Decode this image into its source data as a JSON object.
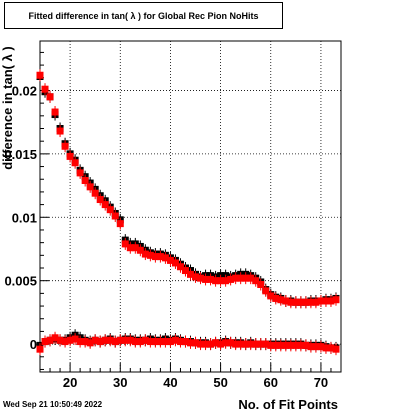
{
  "title": "Fitted difference in tan( λ ) for Global Rec Pion NoHits",
  "timestamp": "Wed Sep 21 10:50:49 2022",
  "chart_data": {
    "type": "scatter",
    "title": "Fitted difference in tan( λ ) for Global Rec Pion NoHits",
    "xlabel": "No. of Fit Points",
    "ylabel": "difference in tan( λ )",
    "xlim": [
      14,
      74
    ],
    "ylim": [
      -0.0022,
      0.0239
    ],
    "xticks": [
      20,
      30,
      40,
      50,
      60,
      70
    ],
    "xtick_labels": [
      "20",
      "30",
      "40",
      "50",
      "60",
      "70"
    ],
    "yticks": [
      0,
      0.005,
      0.01,
      0.015,
      0.02
    ],
    "ytick_labels": [
      "0",
      "0.005",
      "0.01",
      "0.015",
      "0.02"
    ],
    "grid": true,
    "colors": {
      "black": "#000000",
      "red": "#ff0000"
    },
    "series": [
      {
        "color": "black",
        "x": [
          14,
          15,
          16,
          17,
          18,
          19,
          20,
          21,
          22,
          23,
          24,
          25,
          26,
          27,
          28,
          29,
          30,
          31,
          32,
          33,
          34,
          35,
          36,
          37,
          38,
          39,
          40,
          41,
          42,
          43,
          44,
          45,
          46,
          47,
          48,
          49,
          50,
          51,
          52,
          53,
          54,
          55,
          56,
          57,
          58,
          59,
          60,
          61,
          62,
          63,
          64,
          65,
          66,
          67,
          68,
          69,
          70,
          71,
          72,
          73
        ],
        "y": [
          0.0211,
          0.0199,
          0.0195,
          0.0181,
          0.017,
          0.0158,
          0.015,
          0.0145,
          0.0137,
          0.0132,
          0.0127,
          0.0122,
          0.0117,
          0.0113,
          0.0108,
          0.0103,
          0.0098,
          0.0082,
          0.0079,
          0.0079,
          0.0077,
          0.0074,
          0.0072,
          0.0071,
          0.0071,
          0.007,
          0.0068,
          0.0066,
          0.0063,
          0.006,
          0.0058,
          0.0055,
          0.0053,
          0.0054,
          0.0054,
          0.0053,
          0.0054,
          0.0054,
          0.0053,
          0.0054,
          0.0055,
          0.0055,
          0.0054,
          0.0052,
          0.0049,
          0.0043,
          0.0039,
          0.0037,
          0.0036,
          0.0034,
          0.0034,
          0.0033,
          0.0033,
          0.0033,
          0.0034,
          0.0034,
          0.0034,
          0.0035,
          0.0035,
          0.0036
        ]
      },
      {
        "color": "black",
        "x": [
          14,
          15,
          16,
          17,
          18,
          19,
          20,
          21,
          22,
          23,
          24,
          25,
          26,
          27,
          28,
          29,
          30,
          31,
          32,
          33,
          34,
          35,
          36,
          37,
          38,
          39,
          40,
          41,
          42,
          43,
          44,
          45,
          46,
          47,
          48,
          49,
          50,
          51,
          52,
          53,
          54,
          55,
          56,
          57,
          58,
          59,
          60,
          61,
          62,
          63,
          64,
          65,
          66,
          67,
          68,
          69,
          70,
          71,
          72,
          73
        ],
        "y": [
          -0.0001,
          0.0002,
          0.0003,
          0.0004,
          0.0003,
          0.0003,
          0.0005,
          0.0007,
          0.0005,
          0.0003,
          0.0002,
          0.0003,
          0.0002,
          0.0003,
          0.0004,
          0.0002,
          0.0003,
          0.0004,
          0.0004,
          0.0003,
          0.0003,
          0.0003,
          0.0004,
          0.0003,
          0.0003,
          0.0004,
          0.0003,
          0.0004,
          0.0003,
          0.0002,
          0.0002,
          0.0001,
          0.0001,
          0.0001,
          0.0,
          0.0001,
          0.0001,
          0.0002,
          0.0001,
          0.0001,
          0.0001,
          0.0,
          0.0001,
          0.0,
          0.0,
          0.0,
          0.0,
          0.0,
          0.0,
          0.0,
          0.0,
          0.0,
          0.0,
          -0.0001,
          -0.0001,
          -0.0001,
          -0.0001,
          -0.0002,
          -0.0003,
          -0.0003
        ]
      },
      {
        "color": "red",
        "x": [
          14,
          15,
          16,
          17,
          18,
          19,
          20,
          21,
          22,
          23,
          24,
          25,
          26,
          27,
          28,
          29,
          30,
          31,
          32,
          33,
          34,
          35,
          36,
          37,
          38,
          39,
          40,
          41,
          42,
          43,
          44,
          45,
          46,
          47,
          48,
          49,
          50,
          51,
          52,
          53,
          54,
          55,
          56,
          57,
          58,
          59,
          60,
          61,
          62,
          63,
          64,
          65,
          66,
          67,
          68,
          69,
          70,
          71,
          72,
          73
        ],
        "y": [
          0.0212,
          0.0201,
          0.0195,
          0.0183,
          0.0168,
          0.0156,
          0.0148,
          0.0143,
          0.0135,
          0.0129,
          0.0124,
          0.0119,
          0.0114,
          0.011,
          0.0106,
          0.0101,
          0.0095,
          0.0079,
          0.0076,
          0.0076,
          0.0074,
          0.0071,
          0.007,
          0.0069,
          0.0069,
          0.0068,
          0.0066,
          0.0064,
          0.0061,
          0.0058,
          0.0055,
          0.0053,
          0.0052,
          0.0051,
          0.0051,
          0.005,
          0.005,
          0.005,
          0.0051,
          0.0052,
          0.0052,
          0.0052,
          0.0052,
          0.005,
          0.0047,
          0.0042,
          0.0038,
          0.0036,
          0.0035,
          0.0034,
          0.0033,
          0.0033,
          0.0033,
          0.0033,
          0.0033,
          0.0033,
          0.0034,
          0.0034,
          0.0034,
          0.0035
        ]
      },
      {
        "color": "red",
        "x": [
          14,
          15,
          16,
          17,
          18,
          19,
          20,
          21,
          22,
          23,
          24,
          25,
          26,
          27,
          28,
          29,
          30,
          31,
          32,
          33,
          34,
          35,
          36,
          37,
          38,
          39,
          40,
          41,
          42,
          43,
          44,
          45,
          46,
          47,
          48,
          49,
          50,
          51,
          52,
          53,
          54,
          55,
          56,
          57,
          58,
          59,
          60,
          61,
          62,
          63,
          64,
          65,
          66,
          67,
          68,
          69,
          70,
          71,
          72,
          73
        ],
        "y": [
          -0.0004,
          0.0002,
          0.0003,
          0.0005,
          0.0003,
          0.0002,
          0.0003,
          0.0004,
          0.0002,
          0.0002,
          0.0001,
          0.0003,
          0.0002,
          0.0003,
          0.0003,
          0.0002,
          0.0003,
          0.0003,
          0.0003,
          0.0002,
          0.0002,
          0.0003,
          0.0002,
          0.0002,
          0.0002,
          0.0002,
          0.0002,
          0.0003,
          0.0002,
          0.0002,
          0.0001,
          0.0001,
          0.0,
          0.0,
          0.0,
          0.0001,
          0.0,
          0.0001,
          0.0001,
          0.0,
          0.0,
          0.0,
          0.0,
          0.0,
          0.0,
          0.0,
          -0.0001,
          -0.0001,
          -0.0001,
          -0.0001,
          -0.0001,
          -0.0001,
          -0.0001,
          -0.0001,
          -0.0002,
          -0.0002,
          -0.0002,
          -0.0003,
          -0.0003,
          -0.0004
        ]
      }
    ]
  }
}
